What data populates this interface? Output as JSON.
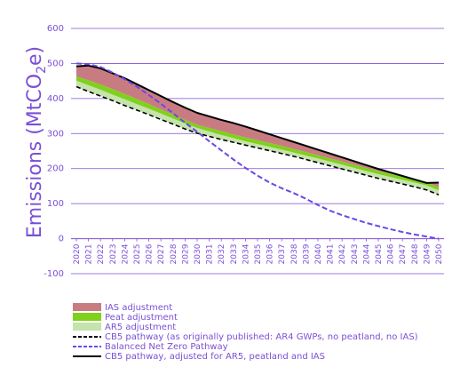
{
  "chart_data": {
    "type": "area",
    "title": "",
    "ylabel": "Emissions (MtCO2e)",
    "ylabel_parts": {
      "main": "Emissions (MtCO",
      "sub": "2",
      "tail": "e)"
    },
    "xlabel": "",
    "ylim": [
      -100,
      600
    ],
    "yticks": [
      -100,
      0,
      100,
      200,
      300,
      400,
      500,
      600
    ],
    "grid": true,
    "legend_position": "bottom-left",
    "x": [
      2020,
      2021,
      2022,
      2023,
      2024,
      2025,
      2026,
      2027,
      2028,
      2029,
      2030,
      2031,
      2032,
      2033,
      2034,
      2035,
      2036,
      2037,
      2038,
      2039,
      2040,
      2041,
      2042,
      2043,
      2044,
      2045,
      2046,
      2047,
      2048,
      2049,
      2050
    ],
    "colors": {
      "axis_text": "#7b4fd6",
      "grid": "#7b4fd6",
      "ias": "#c87c82",
      "peat": "#7fd11b",
      "ar5": "#c5e3ad",
      "cb5_original": "#000000",
      "net_zero": "#6a48e8",
      "cb5_adjusted": "#000000"
    },
    "series": [
      {
        "name": "IAS adjustment",
        "kind": "area-band",
        "lower": "peat_top",
        "values": [
          492,
          494,
          486,
          472,
          458,
          441,
          424,
          407,
          390,
          374,
          359,
          349,
          339,
          330,
          320,
          309,
          298,
          287,
          276,
          265,
          254,
          243,
          232,
          221,
          210,
          199,
          189,
          179,
          169,
          159,
          160
        ]
      },
      {
        "name": "Peat adjustment",
        "kind": "area-band",
        "lower": "ar5_top",
        "values": [
          463,
          452,
          440,
          427,
          413,
          399,
          384,
          369,
          354,
          339,
          325,
          316,
          307,
          298,
          289,
          281,
          273,
          265,
          256,
          247,
          238,
          229,
          220,
          211,
          202,
          193,
          185,
          177,
          169,
          160,
          147
        ]
      },
      {
        "name": "AR5 adjustment",
        "kind": "area-band",
        "lower": "cb5_original",
        "values": [
          451,
          438,
          425,
          411,
          398,
          384,
          371,
          357,
          343,
          329,
          316,
          306,
          296,
          287,
          278,
          270,
          262,
          254,
          246,
          237,
          229,
          220,
          211,
          202,
          193,
          184,
          176,
          168,
          160,
          152,
          138
        ]
      },
      {
        "name": "CB5 pathway (as originally published: AR4 GWPs, no peatland, no IAS)",
        "kind": "dashed-line",
        "values": [
          434,
          420,
          407,
          394,
          380,
          367,
          354,
          340,
          327,
          313,
          301,
          292,
          283,
          275,
          267,
          259,
          251,
          243,
          235,
          226,
          217,
          208,
          199,
          190,
          181,
          172,
          164,
          156,
          148,
          139,
          125
        ]
      },
      {
        "name": "Balanced Net Zero Pathway",
        "kind": "dashed-line",
        "values": [
          500,
          498,
          490,
          474,
          455,
          434,
          410,
          385,
          358,
          331,
          305,
          278,
          252,
          226,
          202,
          180,
          160,
          144,
          130,
          114,
          96,
          80,
          67,
          56,
          45,
          36,
          27,
          19,
          12,
          6,
          0
        ]
      },
      {
        "name": "CB5 pathway, adjusted for AR5, peatland and IAS",
        "kind": "solid-line",
        "values": [
          492,
          494,
          486,
          472,
          458,
          441,
          424,
          407,
          390,
          374,
          359,
          349,
          339,
          330,
          320,
          309,
          298,
          287,
          276,
          265,
          254,
          243,
          232,
          221,
          210,
          199,
          189,
          179,
          169,
          159,
          160
        ]
      }
    ]
  }
}
